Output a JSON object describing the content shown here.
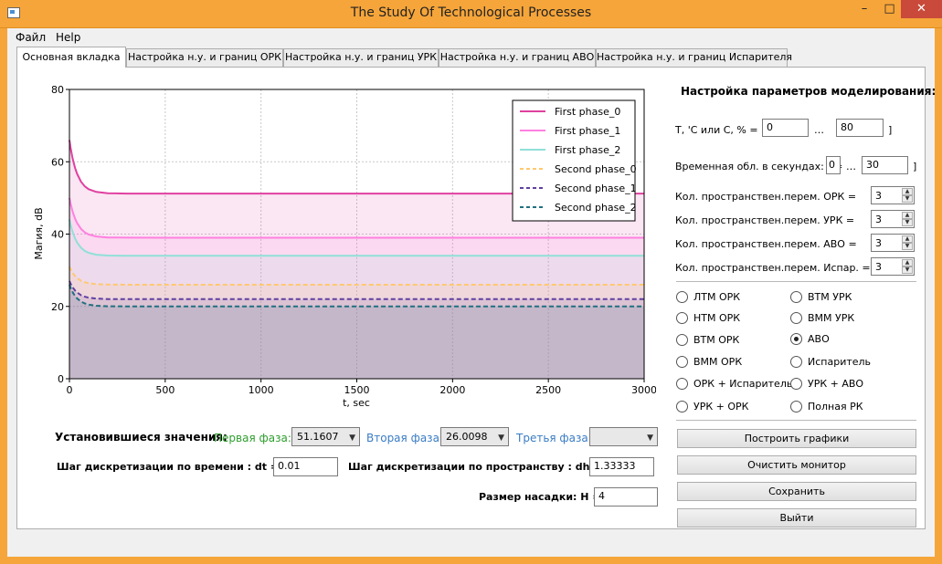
{
  "window": {
    "title": "The Study Of Technological Processes",
    "minimize": "–",
    "maximize": "□",
    "close": "✕"
  },
  "menu": {
    "file": "Файл",
    "help": "Help"
  },
  "tabs": [
    {
      "label": "Основная вкладка"
    },
    {
      "label": "Настройка н.у. и границ ОРК"
    },
    {
      "label": "Настройка н.у. и границ УРК"
    },
    {
      "label": "Настройка н.у. и границ АВО"
    },
    {
      "label": "Настройка н.у. и границ Испарителя"
    }
  ],
  "chart_data": {
    "type": "area",
    "xlabel": "t, sec",
    "ylabel": "Магия, dB",
    "xlim": [
      0,
      3000
    ],
    "ylim": [
      0,
      80
    ],
    "xticks": [
      "0",
      "500",
      "1000",
      "1500",
      "2000",
      "2500",
      "3000"
    ],
    "yticks": [
      "0",
      "20",
      "40",
      "60",
      "80"
    ],
    "grid": true,
    "legend_position": "top-right",
    "series": [
      {
        "name": "First phase_0",
        "style": "solid",
        "color": "#e040a0",
        "start": 66,
        "end": 51.2
      },
      {
        "name": "First phase_1",
        "style": "solid",
        "color": "#ff80e0",
        "start": 50,
        "end": 39
      },
      {
        "name": "First phase_2",
        "style": "solid",
        "color": "#90e0d8",
        "start": 44,
        "end": 34
      },
      {
        "name": "Second phase_0",
        "style": "dashed",
        "color": "#ffc870",
        "start": 31,
        "end": 26
      },
      {
        "name": "Second phase_1",
        "style": "dashed",
        "color": "#6040a0",
        "start": 27,
        "end": 22
      },
      {
        "name": "Second phase_2",
        "style": "dashed",
        "color": "#207080",
        "start": 26,
        "end": 20
      }
    ]
  },
  "params": {
    "title": "Настройка параметров моделирования:",
    "temp_label": "T, 'C или C, % = [",
    "temp_min": "0",
    "temp_dots": "…",
    "temp_max": "80",
    "temp_close": "]",
    "time_label": "Временная обл. в секундах: t =",
    "time_min": "0",
    "time_dots": "…",
    "time_max": "30",
    "time_close": "]",
    "space_vars": [
      {
        "label": "Кол. пространствен.перем. ОРК   =",
        "value": "3"
      },
      {
        "label": "Кол. пространствен.перем. УРК   =",
        "value": "3"
      },
      {
        "label": "Кол. пространствен.перем. АВО   =",
        "value": "3"
      },
      {
        "label": "Кол. пространствен.перем. Испар.   =",
        "value": "3"
      }
    ]
  },
  "modes": [
    {
      "label": "ЛТМ ОРК",
      "checked": false
    },
    {
      "label": "ВТМ УРК",
      "checked": false
    },
    {
      "label": "НТМ ОРК",
      "checked": false
    },
    {
      "label": "ВММ УРК",
      "checked": false
    },
    {
      "label": "ВТМ ОРК",
      "checked": false
    },
    {
      "label": "АВО",
      "checked": true
    },
    {
      "label": "ВММ ОРК",
      "checked": false
    },
    {
      "label": "Испаритель",
      "checked": false
    },
    {
      "label": "ОРК + Испаритель",
      "checked": false
    },
    {
      "label": "УРК + АВО",
      "checked": false
    },
    {
      "label": "УРК + ОРК",
      "checked": false
    },
    {
      "label": "Полная РК",
      "checked": false
    }
  ],
  "buttons": {
    "plot": "Построить графики",
    "clear": "Очистить монитор",
    "save": "Сохранить",
    "exit": "Выйти"
  },
  "steady": {
    "label": "Установившиеся значения:",
    "phase1_label": "Первая фаза:",
    "phase1_value": "51.1607",
    "phase2_label": "Вторая фаза:",
    "phase2_value": "26.0098",
    "phase3_label": "Третья фаза:",
    "phase3_value": ""
  },
  "steps": {
    "dt_label": "Шаг дискретизации по времени : dt =",
    "dt_value": "0.01",
    "dh_label": "Шаг дискретизации по пространству : dh =",
    "dh_value": "1.33333",
    "h_label": "Размер насадки: H =",
    "h_value": "4"
  },
  "colors": {
    "phase1": "#2e9e2e",
    "phase2": "#3a7cc4",
    "phase3": "#3a7cc4"
  }
}
